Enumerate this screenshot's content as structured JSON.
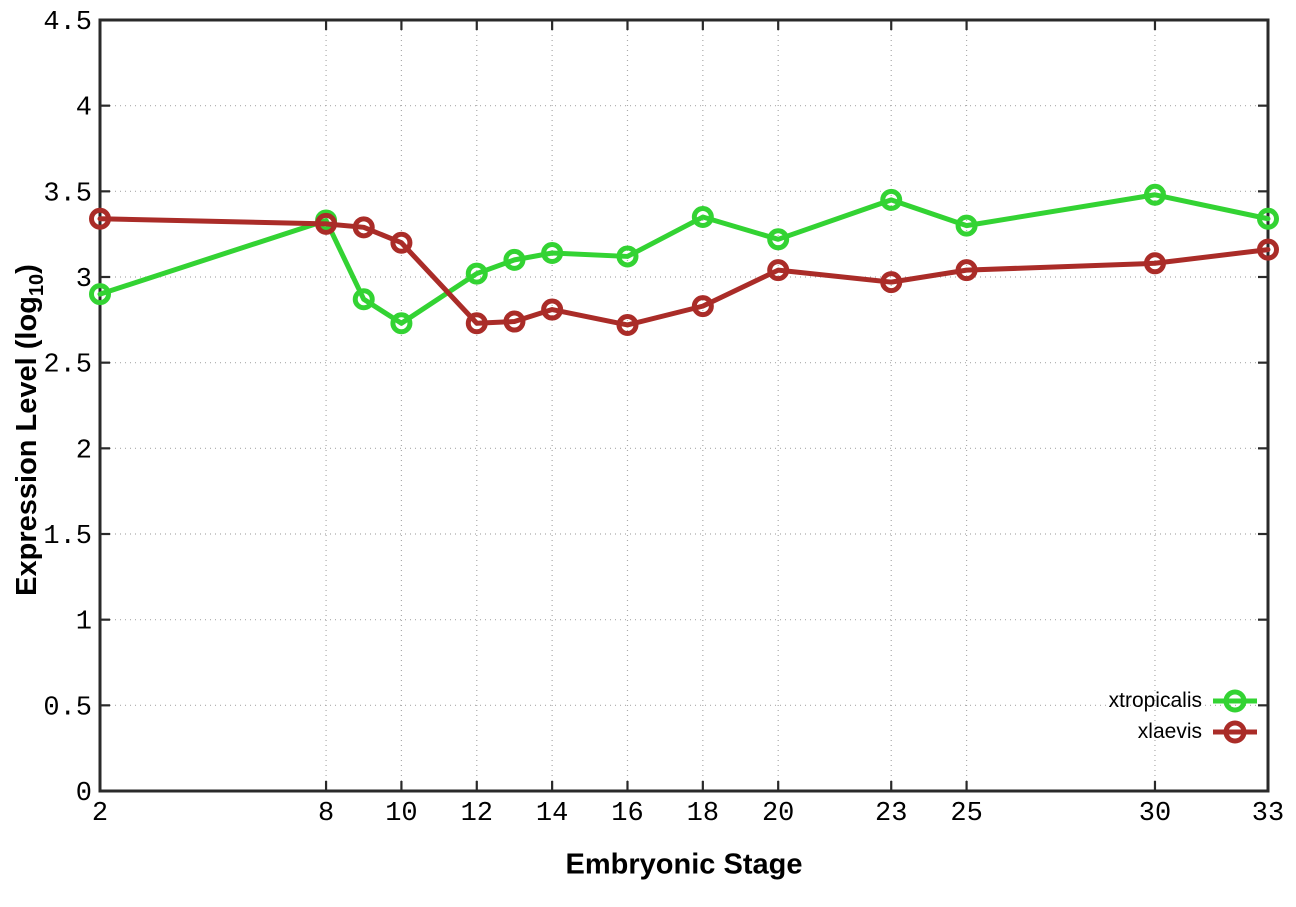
{
  "chart_data": {
    "type": "line",
    "title": "",
    "xlabel": "Embryonic Stage",
    "ylabel": "Expression Level (log10)",
    "ylabel_parts": {
      "prefix": "Expression Level (log",
      "sub": "10",
      "suffix": ")"
    },
    "xlim": [
      2,
      33
    ],
    "ylim": [
      0,
      4.5
    ],
    "x_ticks": [
      2,
      8,
      10,
      12,
      14,
      16,
      18,
      20,
      23,
      25,
      30,
      33
    ],
    "y_ticks": [
      0,
      0.5,
      1,
      1.5,
      2,
      2.5,
      3,
      3.5,
      4,
      4.5
    ],
    "grid": true,
    "legend_position": "bottom-right",
    "x": [
      2,
      8,
      9,
      10,
      12,
      13,
      14,
      16,
      18,
      20,
      23,
      25,
      30,
      33
    ],
    "series": [
      {
        "name": "xtropicalis",
        "color": "#33d333",
        "marker": "open-circle",
        "values": [
          2.9,
          3.33,
          2.87,
          2.73,
          3.02,
          3.1,
          3.14,
          3.12,
          3.35,
          3.22,
          3.45,
          3.3,
          3.48,
          3.34
        ]
      },
      {
        "name": "xlaevis",
        "color": "#aa2c28",
        "marker": "open-circle",
        "values": [
          3.34,
          3.31,
          3.29,
          3.2,
          2.73,
          2.74,
          2.81,
          2.72,
          2.83,
          3.04,
          2.97,
          3.04,
          3.08,
          3.16
        ]
      }
    ],
    "grid_color": "#aaaaaa",
    "border_color": "#2a2a2a",
    "tick_label_color": "#000000"
  }
}
